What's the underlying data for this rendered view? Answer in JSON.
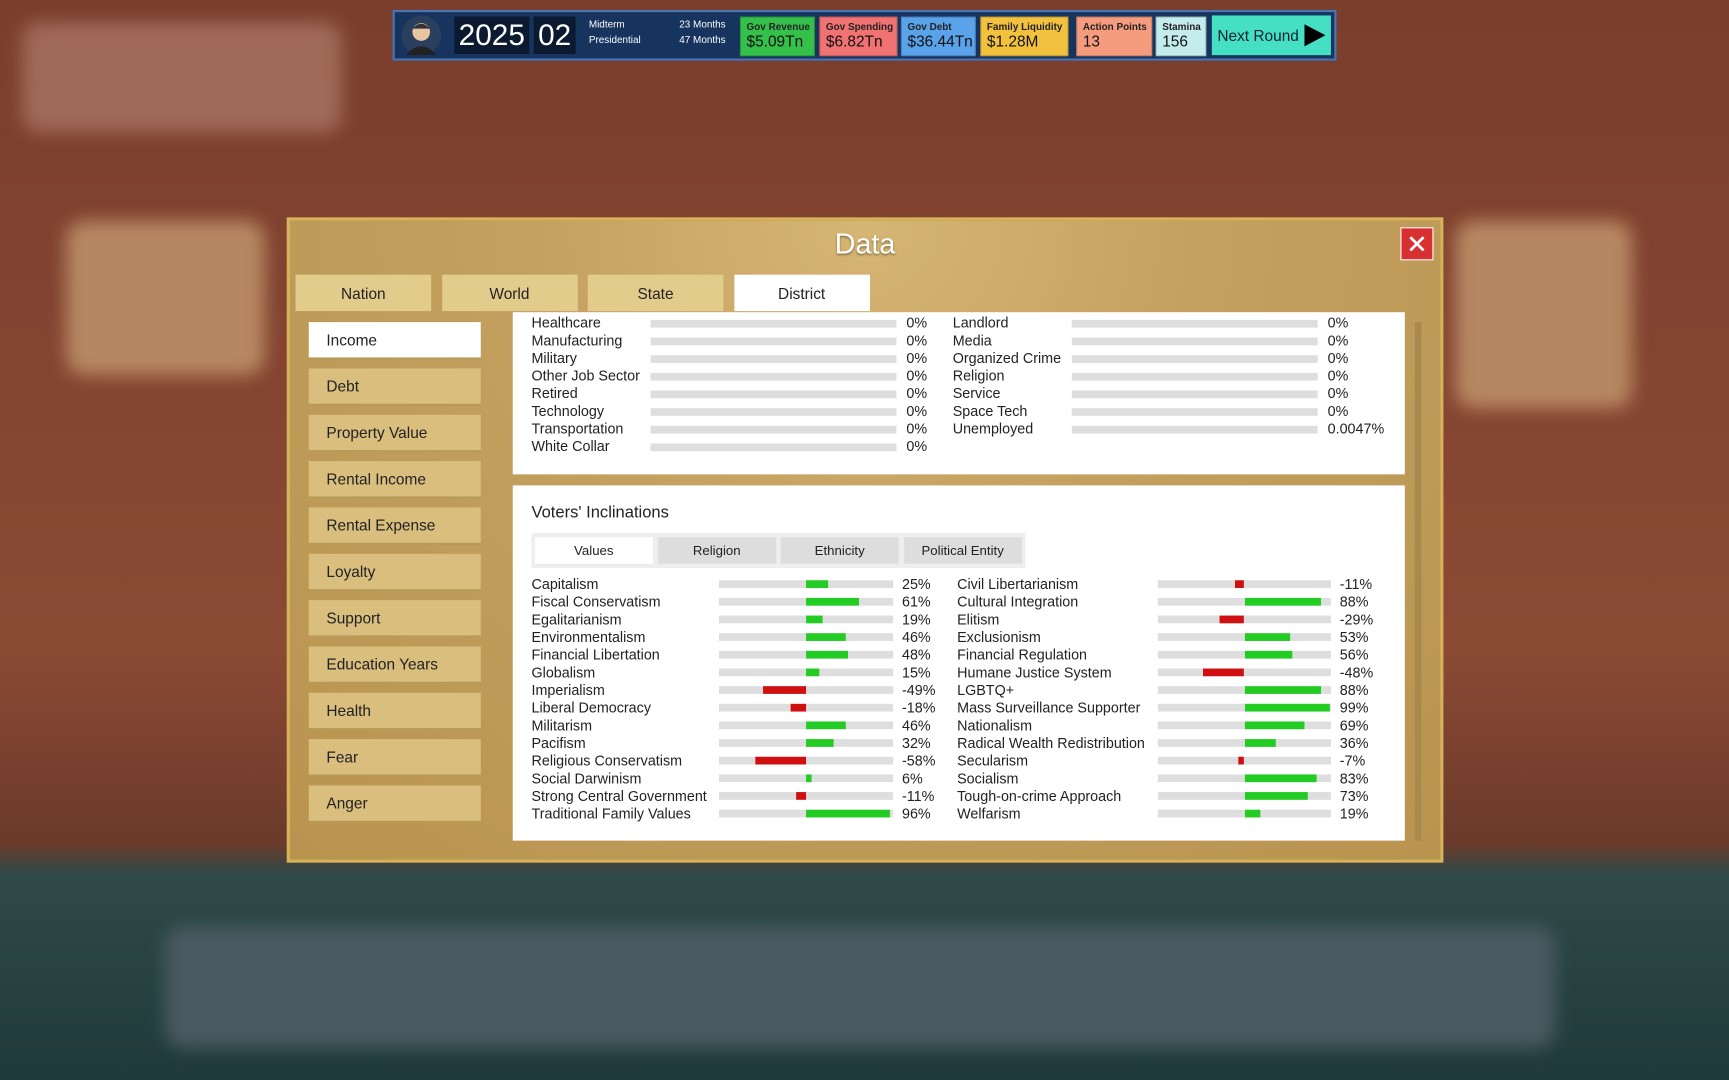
{
  "top_bar": {
    "year": "2025",
    "month": "02",
    "midterm": "Midterm",
    "midterm_time": "23 Months",
    "presidential": "Presidential",
    "presidential_time": "47 Months",
    "stats": [
      {
        "label": "Gov Revenue",
        "value": "$5.09Tn"
      },
      {
        "label": "Gov Spending",
        "value": "$6.82Tn"
      },
      {
        "label": "Gov Debt",
        "value": "$36.44Tn"
      },
      {
        "label": "Family Liquidity",
        "value": "$1.28M"
      },
      {
        "label": "Action Points",
        "value": "13"
      },
      {
        "label": "Stamina",
        "value": "156"
      }
    ],
    "next_round": "Next Round"
  },
  "dialog": {
    "title": "Data",
    "tabs": [
      "Nation",
      "World",
      "State",
      "District"
    ],
    "active_tab": 3,
    "side_menu": [
      "Income",
      "Debt",
      "Property Value",
      "Rental Income",
      "Rental Expense",
      "Loyalty",
      "Support",
      "Education Years",
      "Health",
      "Fear",
      "Anger"
    ],
    "active_side": 0,
    "jobs": {
      "left": [
        {
          "name": "Healthcare",
          "value": 0,
          "value_label": "0%"
        },
        {
          "name": "Manufacturing",
          "value": 0,
          "value_label": "0%"
        },
        {
          "name": "Military",
          "value": 0,
          "value_label": "0%"
        },
        {
          "name": "Other Job Sector",
          "value": 0,
          "value_label": "0%"
        },
        {
          "name": "Retired",
          "value": 0,
          "value_label": "0%"
        },
        {
          "name": "Technology",
          "value": 0,
          "value_label": "0%"
        },
        {
          "name": "Transportation",
          "value": 0,
          "value_label": "0%"
        },
        {
          "name": "White Collar",
          "value": 0,
          "value_label": "0%"
        }
      ],
      "right": [
        {
          "name": "Landlord",
          "value": 0,
          "value_label": "0%"
        },
        {
          "name": "Media",
          "value": 0,
          "value_label": "0%"
        },
        {
          "name": "Organized Crime",
          "value": 0,
          "value_label": "0%"
        },
        {
          "name": "Religion",
          "value": 0,
          "value_label": "0%"
        },
        {
          "name": "Service",
          "value": 0,
          "value_label": "0%"
        },
        {
          "name": "Space Tech",
          "value": 0,
          "value_label": "0%"
        },
        {
          "name": "Unemployed",
          "value": 0.0047,
          "value_label": "0.0047%"
        }
      ]
    },
    "inclinations": {
      "title": "Voters' Inclinations",
      "tabs": [
        "Values",
        "Religion",
        "Ethnicity",
        "Political Entity"
      ],
      "active_tab": 0,
      "left": [
        {
          "name": "Capitalism",
          "value": 25,
          "value_label": "25%"
        },
        {
          "name": "Fiscal Conservatism",
          "value": 61,
          "value_label": "61%"
        },
        {
          "name": "Egalitarianism",
          "value": 19,
          "value_label": "19%"
        },
        {
          "name": "Environmentalism",
          "value": 46,
          "value_label": "46%"
        },
        {
          "name": "Financial Libertation",
          "value": 48,
          "value_label": "48%"
        },
        {
          "name": "Globalism",
          "value": 15,
          "value_label": "15%"
        },
        {
          "name": "Imperialism",
          "value": -49,
          "value_label": "-49%"
        },
        {
          "name": "Liberal Democracy",
          "value": -18,
          "value_label": "-18%"
        },
        {
          "name": "Militarism",
          "value": 46,
          "value_label": "46%"
        },
        {
          "name": "Pacifism",
          "value": 32,
          "value_label": "32%"
        },
        {
          "name": "Religious Conservatism",
          "value": -58,
          "value_label": "-58%"
        },
        {
          "name": "Social Darwinism",
          "value": 6,
          "value_label": "6%"
        },
        {
          "name": "Strong Central Government",
          "value": -11,
          "value_label": "-11%"
        },
        {
          "name": "Traditional Family Values",
          "value": 96,
          "value_label": "96%"
        }
      ],
      "right": [
        {
          "name": "Civil Libertarianism",
          "value": -11,
          "value_label": "-11%"
        },
        {
          "name": "Cultural Integration",
          "value": 88,
          "value_label": "88%"
        },
        {
          "name": "Elitism",
          "value": -29,
          "value_label": "-29%"
        },
        {
          "name": "Exclusionism",
          "value": 53,
          "value_label": "53%"
        },
        {
          "name": "Financial Regulation",
          "value": 56,
          "value_label": "56%"
        },
        {
          "name": "Humane Justice System",
          "value": -48,
          "value_label": "-48%"
        },
        {
          "name": "LGBTQ+",
          "value": 88,
          "value_label": "88%"
        },
        {
          "name": "Mass Surveillance Supporter",
          "value": 99,
          "value_label": "99%"
        },
        {
          "name": "Nationalism",
          "value": 69,
          "value_label": "69%"
        },
        {
          "name": "Radical Wealth Redistribution",
          "value": 36,
          "value_label": "36%"
        },
        {
          "name": "Secularism",
          "value": -7,
          "value_label": "-7%"
        },
        {
          "name": "Socialism",
          "value": 83,
          "value_label": "83%"
        },
        {
          "name": "Tough-on-crime Approach",
          "value": 73,
          "value_label": "73%"
        },
        {
          "name": "Welfarism",
          "value": 19,
          "value_label": "19%"
        }
      ]
    }
  }
}
